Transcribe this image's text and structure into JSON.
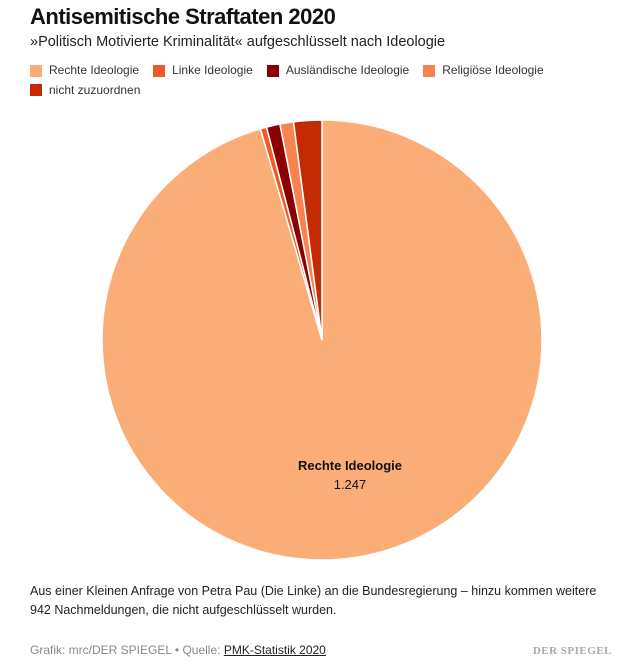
{
  "title": "Antisemitische Straftaten 2020",
  "subtitle": "»Politisch Motivierte Kriminalität« aufgeschlüsselt nach Ideologie",
  "chart_data": {
    "type": "pie",
    "title": "Antisemitische Straftaten 2020",
    "start": "top",
    "direction": "clockwise",
    "legend_placement": "top",
    "slices": [
      {
        "name": "Rechte Ideologie",
        "value": 1247,
        "color": "#fbad78",
        "label": "Rechte Ideologie",
        "value_label": "1.247"
      },
      {
        "name": "Linke Ideologie",
        "value": 6,
        "color": "#f05a28"
      },
      {
        "name": "Ausländische Ideologie",
        "value": 13,
        "color": "#8b0000"
      },
      {
        "name": "Religiöse Ideologie",
        "value": 13,
        "color": "#f7834f"
      },
      {
        "name": "nicht zuzuordnen",
        "value": 27,
        "color": "#c42b05"
      }
    ]
  },
  "note": "Aus einer Kleinen Anfrage von Petra Pau (Die Linke) an die Bundesregierung – hinzu kommen weitere 942 Nachmeldungen, die nicht aufgeschlüsselt wurden.",
  "footer": {
    "credit": "Grafik: mrc/DER SPIEGEL • Quelle: ",
    "source_link": "PMK-Statistik 2020",
    "logo": "DER SPIEGEL"
  }
}
